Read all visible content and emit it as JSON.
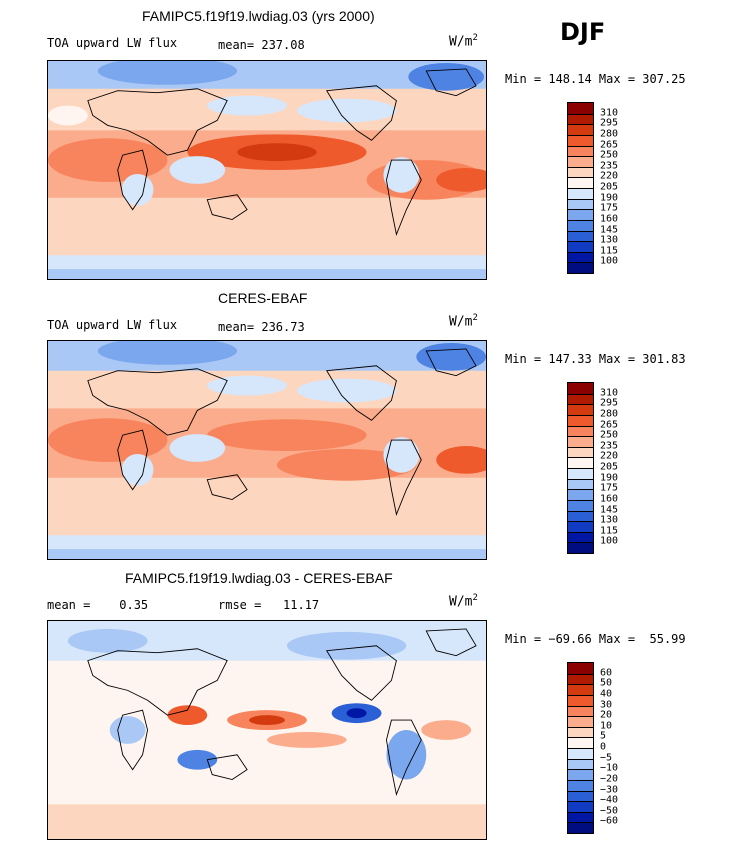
{
  "season": "DJF",
  "panels": [
    {
      "id": "model",
      "title": "FAMIPC5.f19f19.lwdiag.03 (yrs 2000)",
      "left_label": "TOA upward LW flux",
      "stat1": "mean= 237.08",
      "stat2": "",
      "units": "W/m",
      "units_sup": "2",
      "minmax": "Min = 148.14 Max = 307.25",
      "colorbar": {
        "colors": [
          "#8b0000",
          "#b01b00",
          "#d43a10",
          "#ee5a2c",
          "#f7845c",
          "#fbac8c",
          "#fdd6c0",
          "#fff5f0",
          "#d6e6fb",
          "#a9c8f5",
          "#7ba7ee",
          "#4e83e3",
          "#2a5fd6",
          "#113bc2",
          "#0016a4",
          "#000d80"
        ],
        "labels": [
          "310",
          "295",
          "280",
          "265",
          "250",
          "235",
          "220",
          "205",
          "190",
          "175",
          "160",
          "145",
          "130",
          "115",
          "100"
        ]
      }
    },
    {
      "id": "obs",
      "title": "CERES-EBAF",
      "left_label": "TOA upward LW flux",
      "stat1": "mean= 236.73",
      "stat2": "",
      "units": "W/m",
      "units_sup": "2",
      "minmax": "Min = 147.33 Max = 301.83",
      "colorbar": {
        "colors": [
          "#8b0000",
          "#b01b00",
          "#d43a10",
          "#ee5a2c",
          "#f7845c",
          "#fbac8c",
          "#fdd6c0",
          "#fff5f0",
          "#d6e6fb",
          "#a9c8f5",
          "#7ba7ee",
          "#4e83e3",
          "#2a5fd6",
          "#113bc2",
          "#0016a4",
          "#000d80"
        ],
        "labels": [
          "310",
          "295",
          "280",
          "265",
          "250",
          "235",
          "220",
          "205",
          "190",
          "175",
          "160",
          "145",
          "130",
          "115",
          "100"
        ]
      }
    },
    {
      "id": "diff",
      "title": "FAMIPC5.f19f19.lwdiag.03 - CERES-EBAF",
      "left_label": "mean =    0.35",
      "stat1": "rmse =   11.17",
      "stat2": "",
      "units": "W/m",
      "units_sup": "2",
      "minmax": "Min = −69.66 Max =  55.99",
      "colorbar": {
        "colors": [
          "#8b0000",
          "#b01b00",
          "#d43a10",
          "#ee5a2c",
          "#f7845c",
          "#fbac8c",
          "#fdd6c0",
          "#fff5f0",
          "#d6e6fb",
          "#a9c8f5",
          "#7ba7ee",
          "#4e83e3",
          "#2a5fd6",
          "#113bc2",
          "#0016a4",
          "#000d80"
        ],
        "labels": [
          "60",
          "50",
          "40",
          "30",
          "20",
          "10",
          "5",
          "0",
          "−5",
          "−10",
          "−20",
          "−30",
          "−40",
          "−50",
          "−60"
        ]
      }
    }
  ]
}
